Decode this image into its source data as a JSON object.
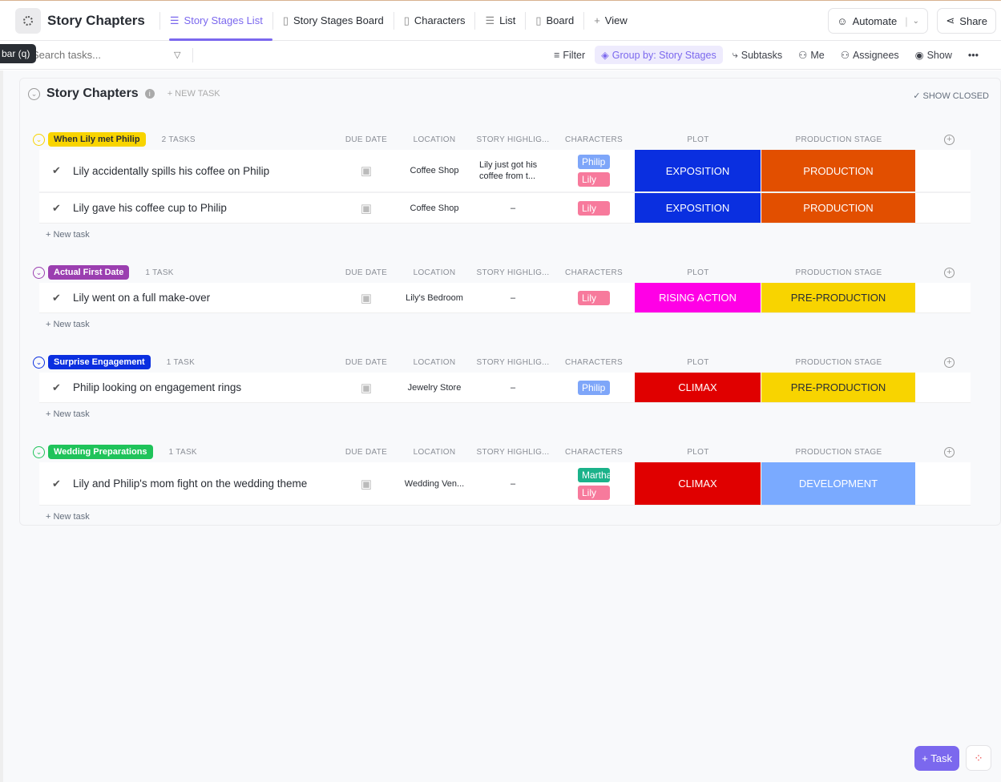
{
  "header": {
    "title": "Story Chapters",
    "tabs": [
      {
        "label": "Story Stages List",
        "icon": "list-icon",
        "active": true
      },
      {
        "label": "Story Stages Board",
        "icon": "board-icon"
      },
      {
        "label": "Characters",
        "icon": "board-icon"
      },
      {
        "label": "List",
        "icon": "list-icon"
      },
      {
        "label": "Board",
        "icon": "board-icon"
      },
      {
        "label": "View",
        "icon": "plus-icon"
      }
    ],
    "automate": "Automate",
    "share": "Share"
  },
  "toolbar": {
    "tooltip": "bar (q)",
    "search_placeholder": "Search tasks...",
    "filter": "Filter",
    "group_by": "Group by: Story Stages",
    "subtasks": "Subtasks",
    "me": "Me",
    "assignees": "Assignees",
    "show": "Show"
  },
  "list": {
    "title": "Story Chapters",
    "new_task": "+ NEW TASK",
    "show_closed": "SHOW CLOSED"
  },
  "columns": {
    "due": "DUE DATE",
    "location": "LOCATION",
    "highlight": "STORY HIGHLIG...",
    "characters": "CHARACTERS",
    "plot": "PLOT",
    "stage": "PRODUCTION STAGE"
  },
  "new_task_row": "+ New task",
  "colors": {
    "accent": "#7b68ee",
    "Philip": "#7ea6f9",
    "Lily": "#f77a9c",
    "Martha": "#1bb28a",
    "EXPOSITION": "#0a2fe0",
    "CLIMAX": "#e00000",
    "RISING ACTION": "#ff00e6",
    "PRODUCTION": "#e24f00",
    "PRE-PRODUCTION": "#f8d400",
    "DEVELOPMENT": "#7aaaff"
  },
  "groups": [
    {
      "name": "When Lily met Philip",
      "count": "2 TASKS",
      "color": "#f8d400",
      "text": "#292d34",
      "tasks": [
        {
          "name": "Lily accidentally spills his coffee on Philip",
          "location": "Coffee Shop",
          "highlight": "Lily just got his coffee from t...",
          "characters": [
            "Philip",
            "Lily"
          ],
          "plot": "EXPOSITION",
          "stage": "PRODUCTION"
        },
        {
          "name": "Lily gave his coffee cup to Philip",
          "location": "Coffee Shop",
          "highlight": "–",
          "characters": [
            "Lily"
          ],
          "plot": "EXPOSITION",
          "stage": "PRODUCTION"
        }
      ]
    },
    {
      "name": "Actual First Date",
      "count": "1 TASK",
      "color": "#9b3fb0",
      "text": "#fff",
      "tasks": [
        {
          "name": "Lily went on a full make-over",
          "location": "Lily's Bedroom",
          "highlight": "–",
          "characters": [
            "Lily"
          ],
          "plot": "RISING ACTION",
          "stage": "PRE-PRODUCTION"
        }
      ]
    },
    {
      "name": "Surprise Engagement",
      "count": "1 TASK",
      "color": "#0a2fe0",
      "text": "#fff",
      "tasks": [
        {
          "name": "Philip looking on engagement rings",
          "location": "Jewelry Store",
          "highlight": "–",
          "characters": [
            "Philip"
          ],
          "plot": "CLIMAX",
          "stage": "PRE-PRODUCTION"
        }
      ]
    },
    {
      "name": "Wedding Preparations",
      "count": "1 TASK",
      "color": "#1fc35a",
      "text": "#fff",
      "tasks": [
        {
          "name": "Lily and Philip's mom fight on the wedding theme",
          "location": "Wedding Ven...",
          "highlight": "–",
          "characters": [
            "Martha",
            "Lily"
          ],
          "plot": "CLIMAX",
          "stage": "DEVELOPMENT"
        }
      ]
    }
  ],
  "fab": {
    "task": "Task"
  }
}
